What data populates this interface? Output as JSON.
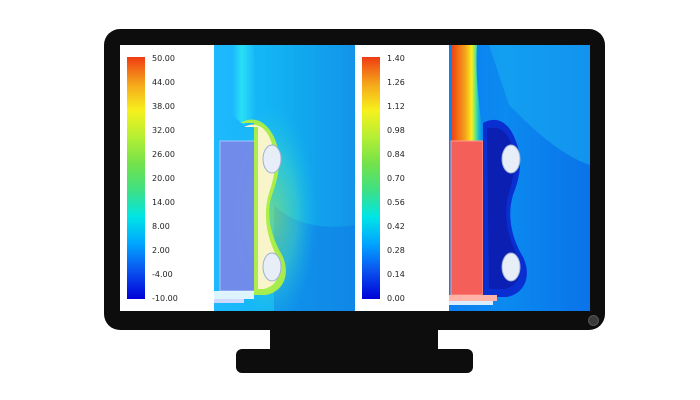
{
  "panels": [
    {
      "legend": {
        "colors": [
          "#0000d8",
          "#0a55f0",
          "#00a6ff",
          "#00e5e5",
          "#3ee083",
          "#74e24a",
          "#b5ef33",
          "#f7f01d",
          "#f5a51a",
          "#ef3b13"
        ],
        "ticks": [
          "50.00",
          "44.00",
          "38.00",
          "32.00",
          "26.00",
          "20.00",
          "14.00",
          "8.00",
          "2.00",
          "-4.00",
          "-10.00"
        ]
      }
    },
    {
      "legend": {
        "colors": [
          "#0000d8",
          "#0a55f0",
          "#00a6ff",
          "#00e5e5",
          "#3ee083",
          "#74e24a",
          "#b5ef33",
          "#f7f01d",
          "#f5a51a",
          "#ef3b13"
        ],
        "ticks": [
          "1.40",
          "1.26",
          "1.12",
          "0.98",
          "0.84",
          "0.70",
          "0.56",
          "0.42",
          "0.28",
          "0.14",
          "0.00"
        ]
      }
    }
  ]
}
